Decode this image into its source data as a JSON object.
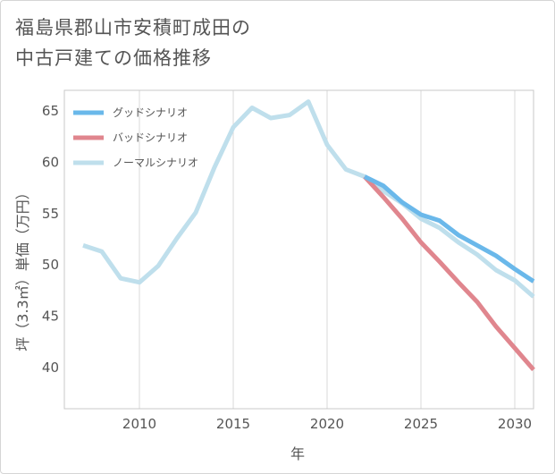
{
  "chart_data": {
    "type": "line",
    "title": [
      "福島県郡山市安積町成田の",
      "中古戸建ての価格推移"
    ],
    "xlabel": "年",
    "ylabel": "坪（3.3㎡）単価（万円）",
    "xlim": [
      2006,
      2031
    ],
    "ylim": [
      36,
      67
    ],
    "xticks": [
      2010,
      2015,
      2020,
      2025,
      2030
    ],
    "yticks": [
      40,
      45,
      50,
      55,
      60,
      65
    ],
    "grid": "vertical",
    "legend_position": "top-left",
    "series": [
      {
        "name": "グッドシナリオ",
        "color": "#6ab8ea",
        "x": [
          2022,
          2023,
          2024,
          2025,
          2026,
          2027,
          2028,
          2029,
          2030,
          2031
        ],
        "y": [
          58.6,
          57.7,
          56.1,
          54.9,
          54.3,
          52.9,
          51.9,
          50.9,
          49.6,
          48.4
        ]
      },
      {
        "name": "バッドシナリオ",
        "color": "#e0868e",
        "x": [
          2022,
          2023,
          2024,
          2025,
          2026,
          2027,
          2028,
          2029,
          2030,
          2031
        ],
        "y": [
          58.6,
          56.6,
          54.5,
          52.2,
          50.3,
          48.3,
          46.4,
          44.0,
          41.9,
          39.8
        ]
      },
      {
        "name": "ノーマルシナリオ",
        "color": "#bfdfec",
        "x": [
          2007,
          2008,
          2009,
          2010,
          2011,
          2012,
          2013,
          2014,
          2015,
          2016,
          2017,
          2018,
          2019,
          2020,
          2021,
          2022,
          2023,
          2024,
          2025,
          2026,
          2027,
          2028,
          2029,
          2030,
          2031
        ],
        "y": [
          51.9,
          51.3,
          48.7,
          48.3,
          49.9,
          52.6,
          55.1,
          59.5,
          63.4,
          65.3,
          64.3,
          64.6,
          65.9,
          61.7,
          59.3,
          58.6,
          57.2,
          56.0,
          54.5,
          53.6,
          52.2,
          51.0,
          49.5,
          48.5,
          46.9
        ]
      }
    ]
  }
}
